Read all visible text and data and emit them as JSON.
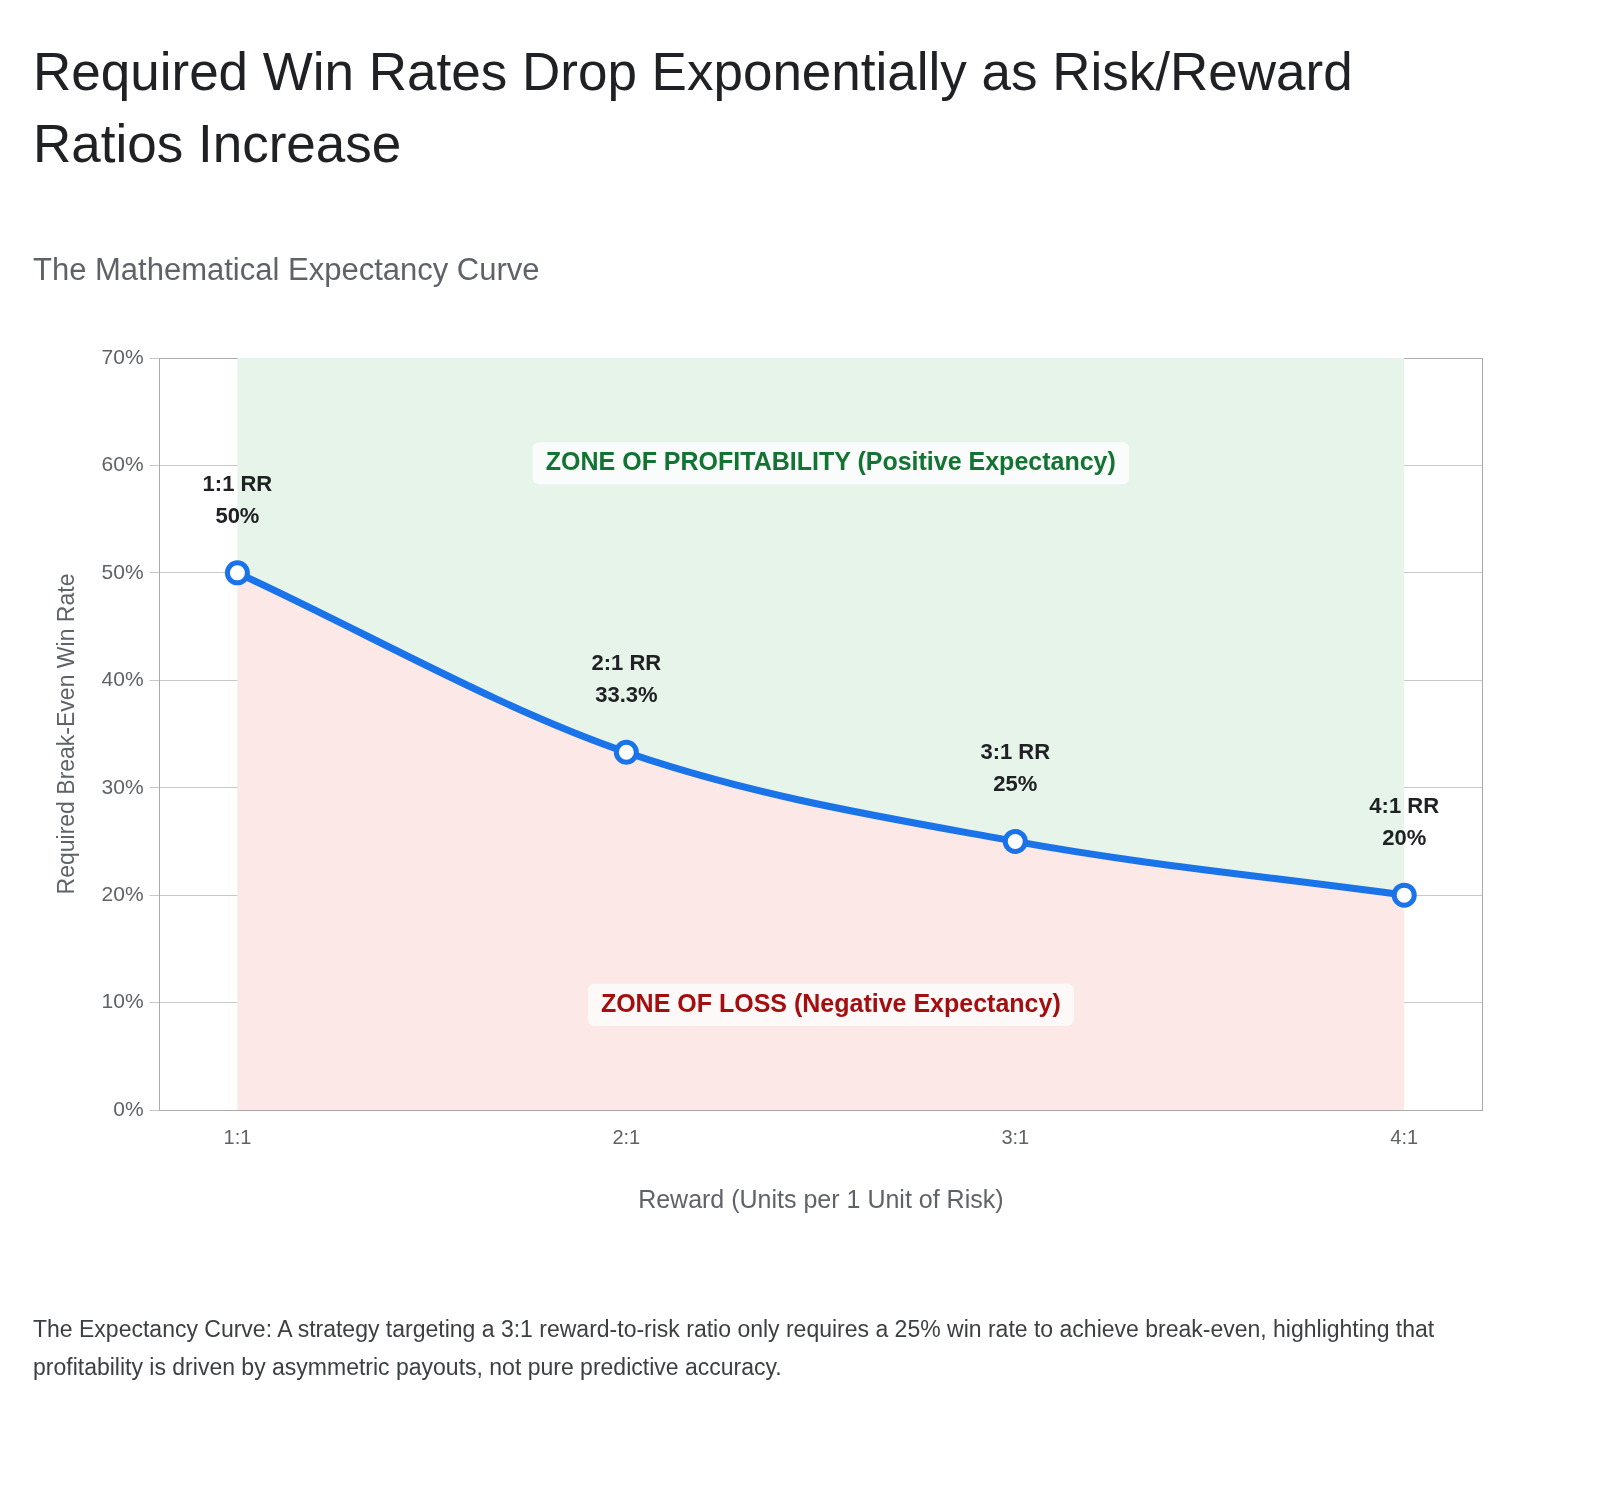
{
  "chart_data": {
    "type": "area",
    "title": "Required Win Rates Drop Exponentially as Risk/Reward Ratios Increase",
    "subtitle": "The Mathematical Expectancy Curve",
    "xlabel": "Reward (Units per 1 Unit of Risk)",
    "ylabel": "Required Break-Even Win Rate",
    "categories": [
      "1:1",
      "2:1",
      "3:1",
      "4:1"
    ],
    "series": [
      {
        "color": "#1a73e8",
        "values": [
          50,
          33.3,
          25,
          20
        ],
        "value_labels": [
          "1:1 RR\n50%",
          "2:1 RR\n33.3%",
          "3:1 RR\n25%",
          "4:1 RR\n20%"
        ]
      }
    ],
    "ylim": [
      0,
      70
    ],
    "yticks": [
      {
        "value": 0,
        "label": "0%"
      },
      {
        "value": 10,
        "label": "10%"
      },
      {
        "value": 20,
        "label": "20%"
      },
      {
        "value": 30,
        "label": "30%"
      },
      {
        "value": 40,
        "label": "40%"
      },
      {
        "value": 50,
        "label": "50%"
      },
      {
        "value": 60,
        "label": "60%"
      },
      {
        "value": 70,
        "label": "70%"
      }
    ],
    "grid": "y",
    "marker": "circle",
    "bands": [
      {
        "axis": "x",
        "from": "1:1",
        "to": "4:1",
        "color": "#e6f4ea",
        "label": "ZONE OF PROFITABILITY (Positive Expectancy)"
      }
    ],
    "annotations": [
      "ZONE OF LOSS (Negative Expectancy)",
      "The Expectancy Curve: A strategy targeting a 3:1 reward-to-risk ratio only requires a 25% win rate to achieve break-even, highlighting that profitability is driven by asymmetric payouts, not pure predictive accuracy."
    ]
  }
}
